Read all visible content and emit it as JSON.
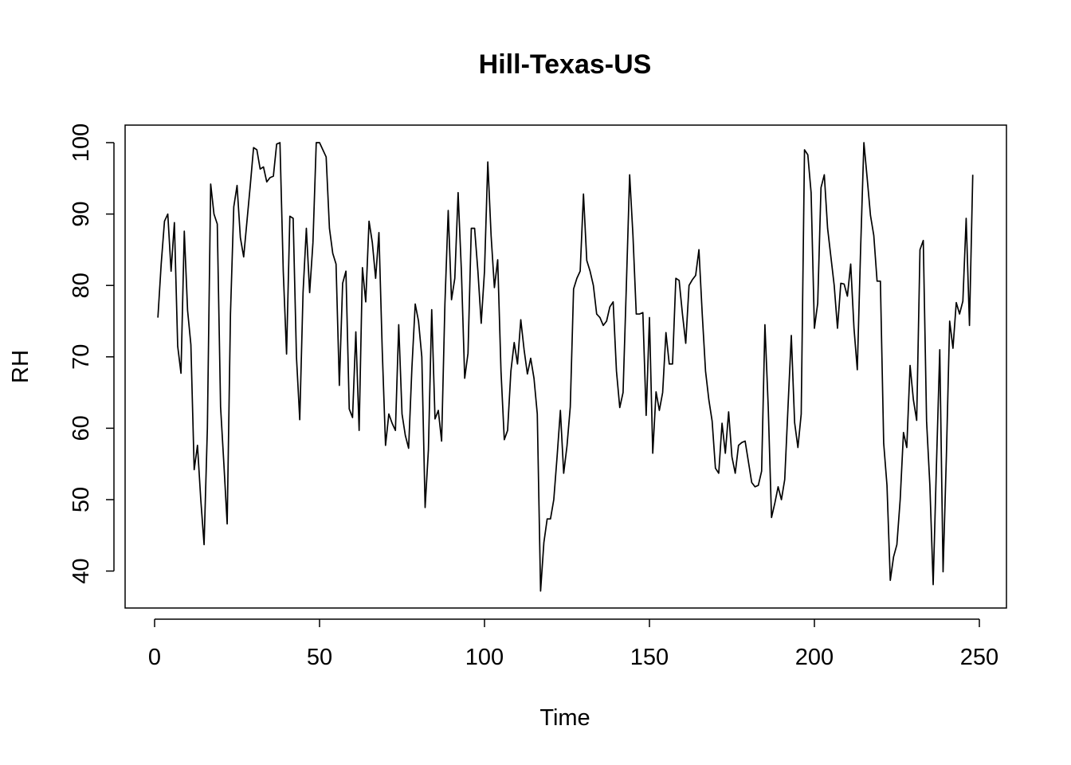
{
  "chart_data": {
    "type": "line",
    "title": "Hill-Texas-US",
    "xlabel": "Time",
    "ylabel": "RH",
    "xlim": [
      1,
      248
    ],
    "ylim": [
      37,
      100
    ],
    "xticks": [
      0,
      50,
      100,
      150,
      200,
      250
    ],
    "yticks": [
      40,
      50,
      60,
      70,
      80,
      90,
      100
    ],
    "grid": false,
    "legend": "none",
    "line_color": "#000000",
    "series": [
      {
        "x": [
          1,
          2,
          3,
          4,
          5,
          6,
          7,
          8,
          9,
          10,
          11,
          12,
          13,
          14,
          15,
          16,
          17,
          18,
          19,
          20,
          21,
          22,
          23,
          24,
          25,
          26,
          27,
          28,
          29,
          30,
          31,
          32,
          33,
          34,
          35,
          36,
          37,
          38,
          39,
          40,
          41,
          42,
          43,
          44,
          45,
          46,
          47,
          48,
          49,
          50,
          51,
          52,
          53,
          54,
          55,
          56,
          57,
          58,
          59,
          60,
          61,
          62,
          63,
          64,
          65,
          66,
          67,
          68,
          69,
          70,
          71,
          72,
          73,
          74,
          75,
          76,
          77,
          78,
          79,
          80,
          81,
          82,
          83,
          84,
          85,
          86,
          87,
          88,
          89,
          90,
          91,
          92,
          93,
          94,
          95,
          96,
          97,
          98,
          99,
          100,
          101,
          102,
          103,
          104,
          105,
          106,
          107,
          108,
          109,
          110,
          111,
          112,
          113,
          114,
          115,
          116,
          117,
          118,
          119,
          120,
          121,
          122,
          123,
          124,
          125,
          126,
          127,
          128,
          129,
          130,
          131,
          132,
          133,
          134,
          135,
          136,
          137,
          138,
          139,
          140,
          141,
          142,
          143,
          144,
          145,
          146,
          147,
          148,
          149,
          150,
          151,
          152,
          153,
          154,
          155,
          156,
          157,
          158,
          159,
          160,
          161,
          162,
          163,
          164,
          165,
          166,
          167,
          168,
          169,
          170,
          171,
          172,
          173,
          174,
          175,
          176,
          177,
          178,
          179,
          180,
          181,
          182,
          183,
          184,
          185,
          186,
          187,
          188,
          189,
          190,
          191,
          192,
          193,
          194,
          195,
          196,
          197,
          198,
          199,
          200,
          201,
          202,
          203,
          204,
          205,
          206,
          207,
          208,
          209,
          210,
          211,
          212,
          213,
          214,
          215,
          216,
          217,
          218,
          219,
          220,
          221,
          222,
          223,
          224,
          225,
          226,
          227,
          228,
          229,
          230,
          231,
          232,
          233,
          234,
          235,
          236,
          237,
          238,
          239,
          240,
          241,
          242,
          243,
          244,
          245,
          246,
          247,
          248
        ],
        "values": [
          75.5,
          83,
          89,
          90,
          82,
          88.8,
          71.5,
          67.7,
          87.6,
          76.5,
          71.7,
          54.2,
          57.6,
          50,
          43.7,
          60,
          94.2,
          90,
          88.6,
          63,
          55,
          46.6,
          76,
          91,
          94,
          86.7,
          84,
          89,
          94,
          99.3,
          99,
          96.3,
          96.6,
          94.5,
          95.1,
          95.3,
          99.8,
          100,
          82,
          70.4,
          89.7,
          89.4,
          70,
          61.2,
          79,
          88,
          79,
          86,
          100,
          100,
          99,
          98,
          88,
          84.5,
          83,
          66,
          80.3,
          82,
          62.7,
          61.5,
          73.5,
          59.7,
          82.5,
          77.7,
          89,
          86,
          81,
          87.4,
          71,
          57.6,
          62,
          60.7,
          59.7,
          74.5,
          62,
          59,
          57.2,
          68.5,
          77.4,
          75,
          70,
          48.9,
          57,
          76.6,
          61.3,
          62.5,
          58.2,
          77.4,
          90.5,
          78,
          81,
          93,
          82,
          67,
          70.5,
          88,
          88,
          82,
          74.7,
          82,
          97.3,
          87,
          79.7,
          83.6,
          68,
          58.4,
          59.7,
          68,
          72,
          69,
          75.2,
          71,
          67.6,
          69.8,
          67,
          62,
          37.2,
          44,
          47.3,
          47.3,
          50,
          56,
          62.5,
          53.7,
          57.5,
          63,
          79.5,
          81,
          82,
          92.8,
          83.5,
          82,
          80,
          76,
          75.5,
          74.4,
          75,
          77,
          77.7,
          68,
          62.9,
          65,
          80,
          95.5,
          87,
          76,
          76,
          76.2,
          61.8,
          75.5,
          56.5,
          65.1,
          62.5,
          65,
          73.4,
          69,
          69,
          81,
          80.7,
          76,
          71.9,
          80,
          80.8,
          81.4,
          85,
          76,
          68,
          64,
          61,
          54.4,
          53.7,
          60.7,
          56.5,
          62.3,
          56,
          53.7,
          57.6,
          58,
          58.2,
          55.3,
          52.4,
          51.8,
          52,
          54,
          74.5,
          63,
          47.5,
          49.5,
          51.8,
          50,
          52.8,
          63,
          73,
          60.8,
          57.3,
          62,
          99,
          98.3,
          93,
          74,
          77.5,
          93.7,
          95.5,
          88,
          84,
          80,
          74,
          80.3,
          80.2,
          78.5,
          83,
          74,
          68.2,
          85,
          100,
          95,
          89.8,
          87,
          80.6,
          80.6,
          57.9,
          52,
          38.7,
          42,
          43.7,
          50,
          59.4,
          57.3,
          68.8,
          64,
          61.1,
          85,
          86.3,
          61,
          52,
          38.1,
          55,
          71,
          39.9,
          56,
          75,
          71.2,
          77.6,
          76,
          77.8,
          89.4,
          74.4,
          95.5
        ]
      }
    ]
  }
}
